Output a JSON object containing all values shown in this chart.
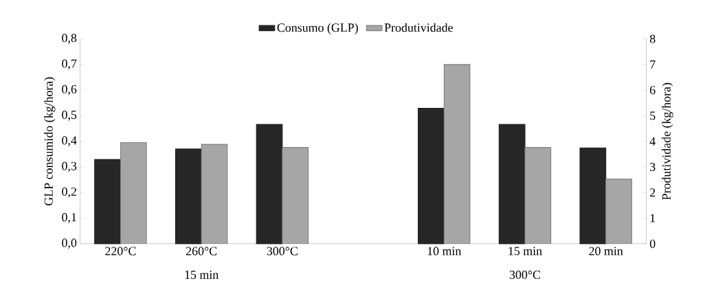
{
  "chart_data": {
    "type": "bar",
    "categories": [
      "220°C",
      "260°C",
      "300°C",
      null,
      "10 min",
      "15 min",
      "20 min"
    ],
    "series": [
      {
        "name": "Consumo (GLP)",
        "color": "#262626",
        "values": [
          0.329,
          0.37,
          0.466,
          null,
          0.529,
          0.466,
          0.374
        ]
      },
      {
        "name": "Produtividade",
        "color": "#a6a6a6",
        "axis": "y2",
        "values": [
          3.95,
          3.88,
          3.76,
          null,
          7.0,
          3.76,
          2.53
        ]
      }
    ],
    "ylabel": "GLP consumido (kg/hora)",
    "y2label": "Produtividade (kg/hora)",
    "ylim": [
      0,
      0.8
    ],
    "yticks": [
      {
        "value": 0,
        "label": "0,0"
      },
      {
        "value": 0.1,
        "label": "0,1"
      },
      {
        "value": 0.2,
        "label": "0,2"
      },
      {
        "value": 0.3,
        "label": "0,3"
      },
      {
        "value": 0.4,
        "label": "0,4"
      },
      {
        "value": 0.5,
        "label": "0,5"
      },
      {
        "value": 0.6,
        "label": "0,6"
      },
      {
        "value": 0.7,
        "label": "0,7"
      },
      {
        "value": 0.8,
        "label": "0,8"
      }
    ],
    "y2lim": [
      0,
      8
    ],
    "y2ticks": [
      0,
      1,
      2,
      3,
      4,
      5,
      6,
      7,
      8
    ],
    "annotations": [
      "15 min",
      "300°C"
    ],
    "legend": "top",
    "grid": false
  }
}
